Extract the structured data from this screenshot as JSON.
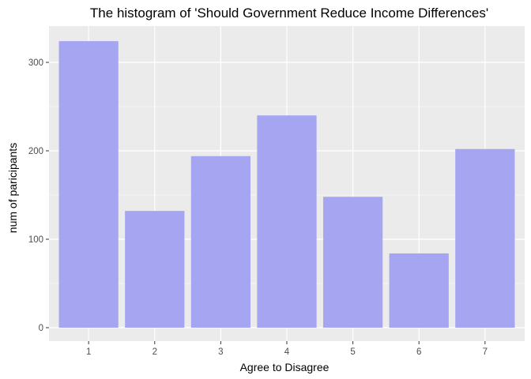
{
  "chart_data": {
    "type": "bar",
    "title": "The histogram of 'Should Government Reduce Income Differences'",
    "xlabel": "Agree to Disagree",
    "ylabel": "num of paricipants",
    "categories": [
      "1",
      "2",
      "3",
      "4",
      "5",
      "6",
      "7"
    ],
    "values": [
      324,
      132,
      194,
      240,
      148,
      84,
      202
    ],
    "ylim": [
      0,
      340
    ],
    "yticks": [
      0,
      100,
      200,
      300
    ],
    "grid": true,
    "bar_color": "#a5a5f2",
    "panel_color": "#ebebeb",
    "grid_color": "#ffffff"
  }
}
